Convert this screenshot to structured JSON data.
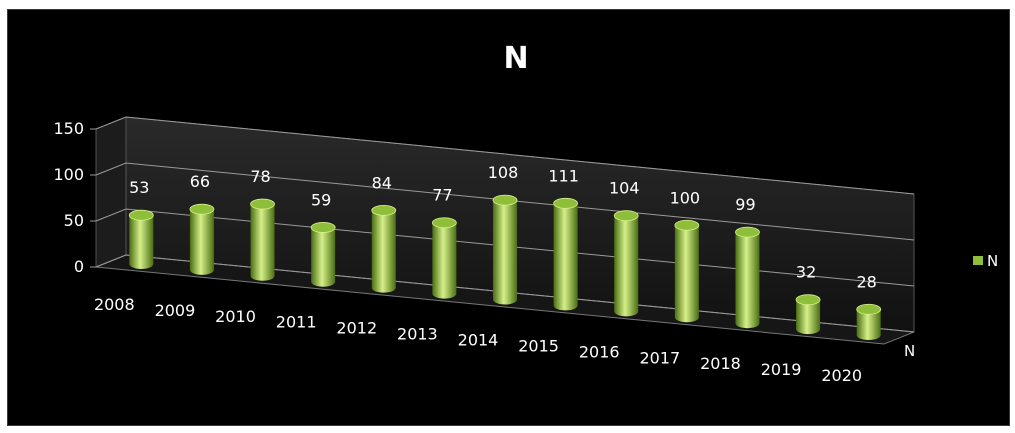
{
  "chart_data": {
    "type": "bar",
    "style": "3d-cylinder",
    "title": "N",
    "categories": [
      "2008",
      "2009",
      "2010",
      "2011",
      "2012",
      "2013",
      "2014",
      "2015",
      "2016",
      "2017",
      "2018",
      "2019",
      "2020"
    ],
    "series": [
      {
        "name": "N",
        "values": [
          53,
          66,
          78,
          59,
          84,
          77,
          108,
          111,
          104,
          100,
          99,
          32,
          28
        ]
      }
    ],
    "data_labels": [
      "53",
      "66",
      "78",
      "59",
      "84",
      "77",
      "108",
      "111",
      "104",
      "100",
      "99",
      "32",
      "28"
    ],
    "y_ticks": [
      "0",
      "50",
      "100",
      "150"
    ],
    "ylim": [
      0,
      150
    ],
    "depth_axis_label": "N",
    "legend": {
      "position": "right",
      "entries": [
        "N"
      ]
    },
    "grid": true,
    "colors": {
      "background": "#000000",
      "bar": "#8fbf3a",
      "bar_highlight": "#d6f08a",
      "bar_shadow": "#4a6e12",
      "text": "#ffffff",
      "grid": "#9a9a9a"
    }
  }
}
